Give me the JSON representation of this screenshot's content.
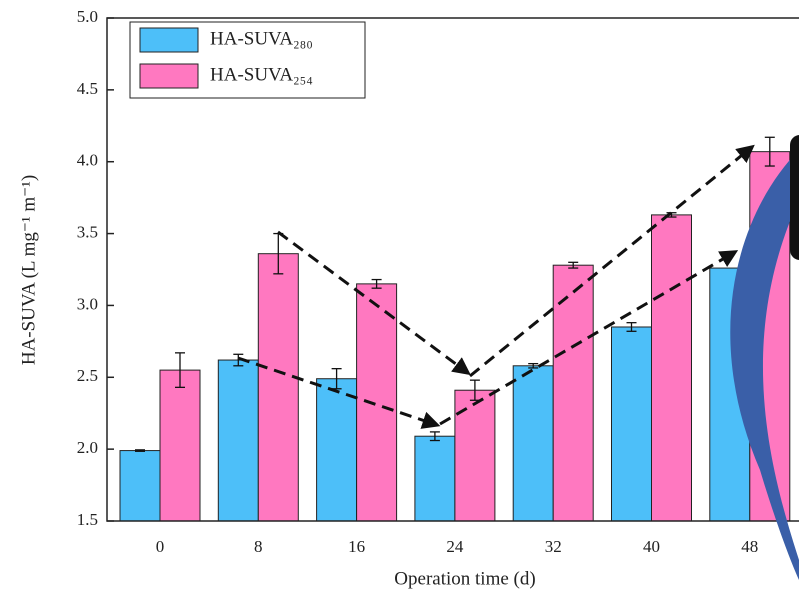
{
  "chart_data": {
    "type": "bar",
    "x_label": "Operation time (d)",
    "y_label": "HA-SUVA (L mg⁻¹ m⁻¹)",
    "categories": [
      "0",
      "8",
      "16",
      "24",
      "32",
      "40",
      "48"
    ],
    "series": [
      {
        "name": "HA-SUVA₂₈₀",
        "color": "#4dbff9",
        "values": [
          1.99,
          2.62,
          2.49,
          2.09,
          2.58,
          2.85,
          3.26
        ],
        "errors": [
          0.005,
          0.04,
          0.07,
          0.03,
          0.015,
          0.03,
          null
        ]
      },
      {
        "name": "HA-SUVA₂₅₄",
        "color": "#ff78c0",
        "values": [
          2.55,
          3.36,
          3.15,
          2.41,
          3.28,
          3.63,
          4.07
        ],
        "errors": [
          0.12,
          0.14,
          0.03,
          0.07,
          0.02,
          0.015,
          0.1
        ]
      }
    ],
    "ylim": [
      1.5,
      5.0
    ],
    "yticks": [
      {
        "value": 1.5,
        "label": "1.5"
      },
      {
        "value": 2,
        "label": "2.0"
      },
      {
        "value": 2.5,
        "label": "2.5"
      },
      {
        "value": 3,
        "label": "3.0"
      },
      {
        "value": 3.5,
        "label": "3.5"
      },
      {
        "value": 4,
        "label": "4.0"
      },
      {
        "value": 4.5,
        "label": "4.5"
      },
      {
        "value": 5,
        "label": "5.0"
      }
    ],
    "legend": "upper left"
  }
}
